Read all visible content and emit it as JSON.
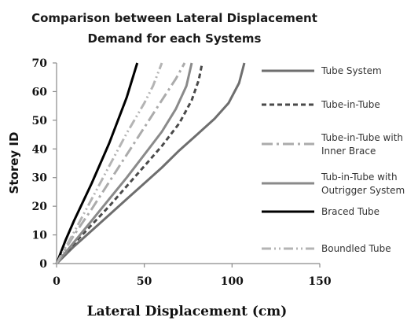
{
  "chart_data": {
    "type": "line",
    "title": [
      "Comparison between Lateral Displacement",
      "Demand for each Systems"
    ],
    "xlabel": "Lateral Displacement (cm)",
    "ylabel": "Storey ID",
    "xlim": [
      0,
      150
    ],
    "ylim": [
      0,
      70
    ],
    "xticks": [
      "0",
      "50",
      "100",
      "150"
    ],
    "yticks": [
      "0",
      "10",
      "20",
      "30",
      "40",
      "50",
      "60",
      "70"
    ],
    "grid": false,
    "legend_position": "right",
    "series": [
      {
        "name": "Tube System",
        "legend_lines": [
          "Tube System"
        ],
        "color": "#6e6e6e",
        "dash": "solid",
        "width": 3,
        "points": [
          [
            0,
            0
          ],
          [
            10,
            6
          ],
          [
            20,
            11.5
          ],
          [
            30,
            17
          ],
          [
            40,
            22.5
          ],
          [
            50,
            28
          ],
          [
            60,
            33.5
          ],
          [
            70,
            39.5
          ],
          [
            80,
            45
          ],
          [
            90,
            50.5
          ],
          [
            98,
            56
          ],
          [
            104,
            63
          ],
          [
            107,
            70
          ]
        ]
      },
      {
        "name": "Tube-in-Tube",
        "legend_lines": [
          "Tube-in-Tube"
        ],
        "color": "#4a4a4a",
        "dash": "6,4",
        "width": 3,
        "points": [
          [
            0,
            0
          ],
          [
            10,
            7
          ],
          [
            20,
            13.5
          ],
          [
            30,
            20
          ],
          [
            40,
            27
          ],
          [
            50,
            34
          ],
          [
            60,
            41
          ],
          [
            70,
            49
          ],
          [
            77,
            57
          ],
          [
            81,
            64
          ],
          [
            83,
            70
          ]
        ]
      },
      {
        "name": "Tube-in-Tube with Inner Brace",
        "legend_lines": [
          "Tube-in-Tube with",
          "Inner Brace"
        ],
        "color": "#ababab",
        "dash": "14,5,3,5",
        "width": 3,
        "points": [
          [
            0,
            0
          ],
          [
            10,
            10
          ],
          [
            20,
            19
          ],
          [
            30,
            28.5
          ],
          [
            40,
            38
          ],
          [
            50,
            47.5
          ],
          [
            60,
            57
          ],
          [
            68,
            64.5
          ],
          [
            73,
            70
          ]
        ]
      },
      {
        "name": "Tub-in-Tube with Outrigger System",
        "legend_lines": [
          "Tub-in-Tube with",
          "Outrigger System"
        ],
        "color": "#8a8a8a",
        "dash": "solid",
        "width": 3,
        "points": [
          [
            0,
            0
          ],
          [
            10,
            7.5
          ],
          [
            20,
            15
          ],
          [
            30,
            22.5
          ],
          [
            40,
            30
          ],
          [
            50,
            38
          ],
          [
            60,
            46
          ],
          [
            68,
            54
          ],
          [
            74,
            62
          ],
          [
            77,
            70
          ]
        ]
      },
      {
        "name": "Braced Tube",
        "legend_lines": [
          "Braced Tube"
        ],
        "color": "#000000",
        "dash": "solid",
        "width": 3,
        "points": [
          [
            0,
            0
          ],
          [
            5,
            8
          ],
          [
            10,
            15
          ],
          [
            20,
            28
          ],
          [
            30,
            42
          ],
          [
            40,
            58
          ],
          [
            46,
            70
          ]
        ]
      },
      {
        "name": "Boundled Tube",
        "legend_lines": [
          "Boundled Tube"
        ],
        "color": "#b4b4b4",
        "dash": "12,4,2,4,2,4",
        "width": 3,
        "points": [
          [
            0,
            0
          ],
          [
            10,
            11
          ],
          [
            20,
            22.5
          ],
          [
            30,
            34
          ],
          [
            40,
            45.5
          ],
          [
            50,
            56
          ],
          [
            55,
            62
          ],
          [
            60,
            70
          ]
        ]
      }
    ]
  }
}
